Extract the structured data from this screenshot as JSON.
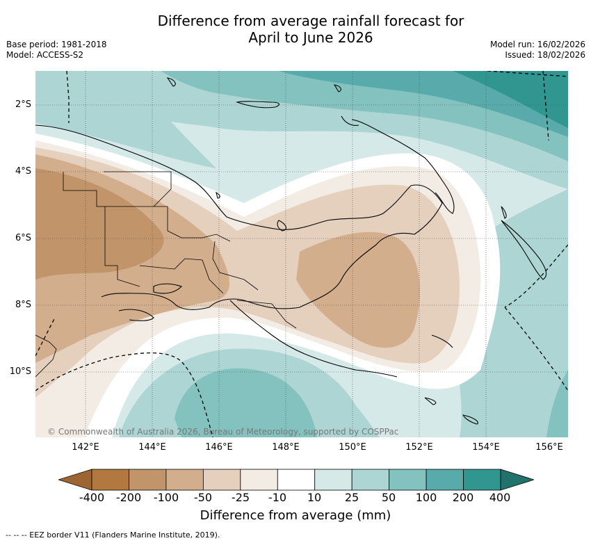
{
  "title": {
    "line1": "Difference from average rainfall forecast for",
    "line2": "April to June 2026"
  },
  "meta": {
    "base_period": "Base period: 1981-2018",
    "model": "Model: ACCESS-S2",
    "model_run": "Model run: 16/02/2026",
    "issued": "Issued: 18/02/2026"
  },
  "axes": {
    "latitudes": [
      "2°S",
      "4°S",
      "6°S",
      "8°S",
      "10°S"
    ],
    "longitudes": [
      "142°E",
      "144°E",
      "146°E",
      "148°E",
      "150°E",
      "152°E",
      "154°E",
      "156°E"
    ]
  },
  "credit": "© Commonwealth of Australia 2026, Bureau of Meteorology, supported by COSPPac",
  "colorbar": {
    "title": "Difference from average (mm)",
    "ticks": [
      "-400",
      "-200",
      "-100",
      "-50",
      "-25",
      "-10",
      "10",
      "25",
      "50",
      "100",
      "200",
      "400"
    ],
    "colors": [
      "#9c6532",
      "#b17940",
      "#c1946a",
      "#d3ae8d",
      "#e5d0bd",
      "#f3ece4",
      "#ffffff",
      "#d6e9e9",
      "#acd5d4",
      "#84c2c0",
      "#58abaa",
      "#31968f",
      "#20726d"
    ]
  },
  "legend": {
    "text": "--  --  -- EEZ border V11 (Flanders Marine Institute, 2019)."
  }
}
